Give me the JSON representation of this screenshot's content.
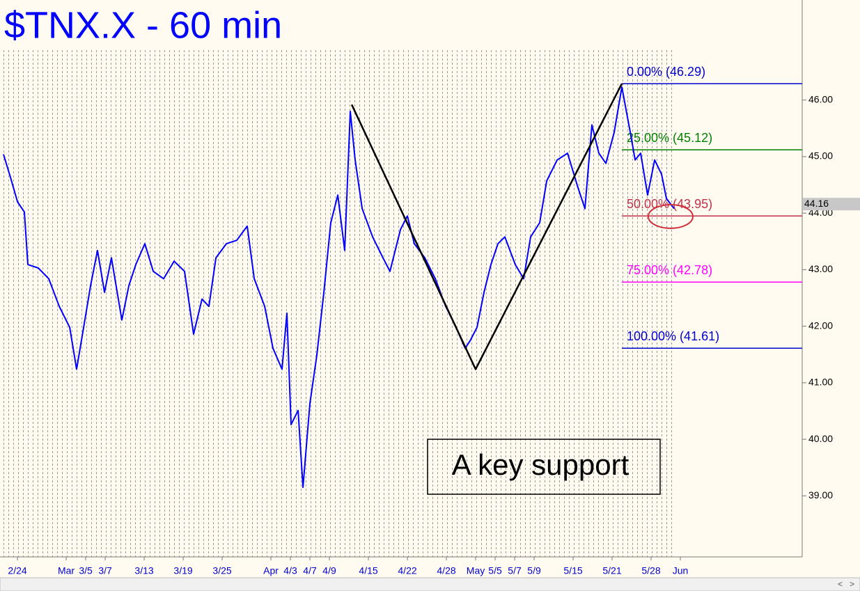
{
  "chart_data": {
    "type": "line",
    "title": "$TNX.X - 60 min",
    "annotation": "A key support",
    "xlim": [
      -1.79,
      80.5
    ],
    "ylim": [
      37.92,
      47.77
    ],
    "xticks": [
      {
        "value": 0,
        "label": "2/24"
      },
      {
        "value": 5,
        "label": "Mar"
      },
      {
        "value": 7,
        "label": "3/5"
      },
      {
        "value": 9,
        "label": "3/7"
      },
      {
        "value": 13,
        "label": "3/13"
      },
      {
        "value": 17,
        "label": "3/19"
      },
      {
        "value": 21,
        "label": "3/25"
      },
      {
        "value": 26,
        "label": "Apr"
      },
      {
        "value": 28,
        "label": "4/3"
      },
      {
        "value": 30,
        "label": "4/7"
      },
      {
        "value": 32,
        "label": "4/9"
      },
      {
        "value": 36,
        "label": "4/15"
      },
      {
        "value": 40,
        "label": "4/22"
      },
      {
        "value": 44,
        "label": "4/28"
      },
      {
        "value": 47,
        "label": "May"
      },
      {
        "value": 49,
        "label": "5/5"
      },
      {
        "value": 51,
        "label": "5/7"
      },
      {
        "value": 53,
        "label": "5/9"
      },
      {
        "value": 57,
        "label": "5/15"
      },
      {
        "value": 61,
        "label": "5/21"
      },
      {
        "value": 65,
        "label": "5/28"
      },
      {
        "value": 68,
        "label": "Jun"
      }
    ],
    "yticks": [
      {
        "value": 39,
        "label": "39.00"
      },
      {
        "value": 40,
        "label": "40.00"
      },
      {
        "value": 41,
        "label": "41.00"
      },
      {
        "value": 42,
        "label": "42.00"
      },
      {
        "value": 43,
        "label": "43.00"
      },
      {
        "value": 44,
        "label": "44.00"
      },
      {
        "value": 45,
        "label": "45.00"
      },
      {
        "value": 46,
        "label": "46.00"
      }
    ],
    "series": [
      {
        "color": "#0000ff",
        "x": [
          -1.43,
          -0.71,
          0,
          0.71,
          1.07,
          2.14,
          3.21,
          4.29,
          5.36,
          6.07,
          6.79,
          7.5,
          8.21,
          8.93,
          9.64,
          10.71,
          11.43,
          12.14,
          13.07,
          13.93,
          15,
          16.07,
          17.14,
          18.07,
          18.93,
          19.64,
          20.36,
          21.43,
          22.5,
          23.57,
          24.29,
          25.36,
          26.21,
          27.14,
          27.64,
          28.07,
          28.79,
          29.29,
          30,
          30.71,
          31.43,
          32.14,
          32.86,
          33.57,
          34.14,
          34.64,
          35.36,
          36.43,
          37.5,
          38.21,
          39.29,
          40,
          40.71,
          41.79,
          42.86,
          43.93,
          45,
          45.93,
          46.43,
          47.14,
          47.86,
          48.57,
          49.29,
          50,
          51.07,
          51.93,
          52.64,
          53.57,
          54.29,
          55.36,
          56.43,
          57.5,
          58.21,
          58.93,
          59.64,
          60.36,
          61.21,
          62,
          62.86,
          63.36,
          63.93,
          64.64,
          65.36,
          66.07,
          66.57,
          67.36
        ],
        "values": [
          45.04,
          44.63,
          44.2,
          44.02,
          43.09,
          43.03,
          42.84,
          42.35,
          41.98,
          41.24,
          41.98,
          42.72,
          43.34,
          42.6,
          43.21,
          42.11,
          42.72,
          43.09,
          43.46,
          42.97,
          42.84,
          43.15,
          42.97,
          41.86,
          42.48,
          42.35,
          43.21,
          43.46,
          43.52,
          43.77,
          42.84,
          42.35,
          41.61,
          41.24,
          42.23,
          40.26,
          40.51,
          39.15,
          40.63,
          41.49,
          42.6,
          43.83,
          44.32,
          43.34,
          45.8,
          44.94,
          44.08,
          43.58,
          43.21,
          42.97,
          43.71,
          43.95,
          43.46,
          43.21,
          42.84,
          42.35,
          41.98,
          41.61,
          41.74,
          41.98,
          42.6,
          43.09,
          43.46,
          43.58,
          43.09,
          42.84,
          43.58,
          43.83,
          44.57,
          44.94,
          45.06,
          44.45,
          44.08,
          45.56,
          45.06,
          44.88,
          45.43,
          46.23,
          45.43,
          44.94,
          45.06,
          44.32,
          44.94,
          44.69,
          44.26,
          44.08
        ]
      },
      {
        "color": "#000000",
        "x": [
          34.29,
          47,
          62
        ],
        "values": [
          45.92,
          41.24,
          46.29
        ]
      }
    ],
    "fib_levels": [
      {
        "label": "0.00% (46.29)",
        "value": 46.29,
        "color": "#0000cc"
      },
      {
        "label": "25.00% (45.12)",
        "value": 45.12,
        "color": "#008000"
      },
      {
        "label": "50.00% (43.95)",
        "value": 43.95,
        "color": "#c0304a"
      },
      {
        "label": "75.00% (42.78)",
        "value": 42.78,
        "color": "#ff00ff"
      },
      {
        "label": "100.00% (41.61)",
        "value": 41.61,
        "color": "#0000cc"
      }
    ],
    "last_price": 44.16
  }
}
